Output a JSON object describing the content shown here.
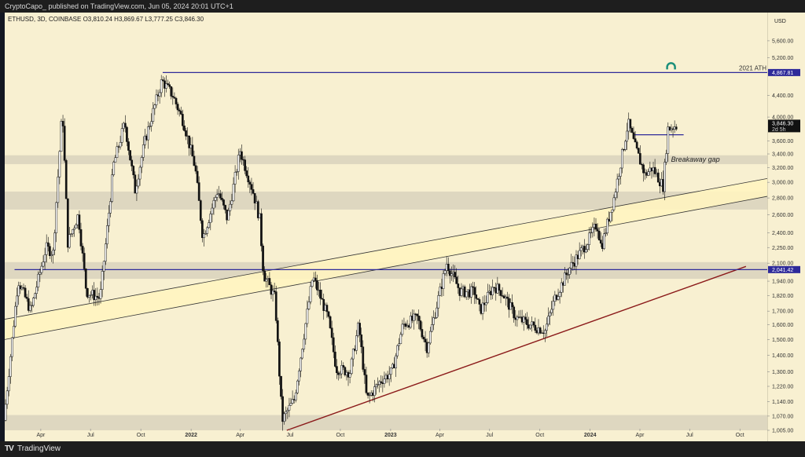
{
  "header": {
    "publish_line": "CryptoCapo_ published on TradingView.com, Jun 05, 2024 20:01 UTC+1"
  },
  "footer": {
    "logo_icon": "tradingview-logo-icon",
    "brand": "TradingView"
  },
  "colors": {
    "background": "#f8f0d1",
    "candle_up": "#ffffff",
    "candle_down": "#111111",
    "zone": "#d9d2bd",
    "channel_fill": "#fff4c0",
    "level_line": "#2e2a9a",
    "support_line": "#8b1a1a"
  },
  "chart_data": {
    "type": "candlestick",
    "symbol_line": "ETHUSD, 3D, COINBASE  O3,810.24  H3,869.67  L3,777.25  C3,846.30",
    "currency": "USD",
    "y_scale": "log",
    "y_range": [
      1005,
      6000
    ],
    "y_ticks": [
      "5,600.00",
      "5,200.00",
      "4,400.00",
      "4,000.00",
      "3,600.00",
      "3,400.00",
      "3,200.00",
      "3,000.00",
      "2,800.00",
      "2,600.00",
      "2,400.00",
      "2,250.00",
      "2,100.00",
      "1,940.00",
      "1,820.00",
      "1,700.00",
      "1,600.00",
      "1,500.00",
      "1,400.00",
      "1,300.00",
      "1,220.00",
      "1,140.00",
      "1,070.00",
      "1,005.00"
    ],
    "x_range": [
      "2021-01-25",
      "2024-11-20"
    ],
    "x_ticks": [
      {
        "label": "Apr",
        "date": "2021-04-01"
      },
      {
        "label": "Jul",
        "date": "2021-07-01"
      },
      {
        "label": "Oct",
        "date": "2021-10-01"
      },
      {
        "label": "2022",
        "date": "2022-01-01"
      },
      {
        "label": "Apr",
        "date": "2022-04-01"
      },
      {
        "label": "Jul",
        "date": "2022-07-01"
      },
      {
        "label": "Oct",
        "date": "2022-10-01"
      },
      {
        "label": "2023",
        "date": "2023-01-01"
      },
      {
        "label": "Apr",
        "date": "2023-04-01"
      },
      {
        "label": "Jul",
        "date": "2023-07-01"
      },
      {
        "label": "Oct",
        "date": "2023-10-01"
      },
      {
        "label": "2024",
        "date": "2024-01-01"
      },
      {
        "label": "Apr",
        "date": "2024-04-01"
      },
      {
        "label": "Jul",
        "date": "2024-07-01"
      },
      {
        "label": "Oct",
        "date": "2024-10-01"
      }
    ],
    "price_path": [
      [
        "2021-01-25",
        1050
      ],
      [
        "2021-02-20",
        1950
      ],
      [
        "2021-03-15",
        1700
      ],
      [
        "2021-04-12",
        2250
      ],
      [
        "2021-04-25",
        2200
      ],
      [
        "2021-05-12",
        4150
      ],
      [
        "2021-05-22",
        2300
      ],
      [
        "2021-06-10",
        2600
      ],
      [
        "2021-06-25",
        1850
      ],
      [
        "2021-07-20",
        1800
      ],
      [
        "2021-08-14",
        3250
      ],
      [
        "2021-09-03",
        3900
      ],
      [
        "2021-09-22",
        2900
      ],
      [
        "2021-10-10",
        3600
      ],
      [
        "2021-11-10",
        4700
      ],
      [
        "2021-11-30",
        4400
      ],
      [
        "2021-12-20",
        3900
      ],
      [
        "2022-01-10",
        3200
      ],
      [
        "2022-01-24",
        2350
      ],
      [
        "2022-02-20",
        2900
      ],
      [
        "2022-03-10",
        2550
      ],
      [
        "2022-04-02",
        3450
      ],
      [
        "2022-04-25",
        2900
      ],
      [
        "2022-05-08",
        2550
      ],
      [
        "2022-05-15",
        2000
      ],
      [
        "2022-06-05",
        1800
      ],
      [
        "2022-06-18",
        1050
      ],
      [
        "2022-07-10",
        1150
      ],
      [
        "2022-08-13",
        1980
      ],
      [
        "2022-09-10",
        1650
      ],
      [
        "2022-09-25",
        1320
      ],
      [
        "2022-10-20",
        1300
      ],
      [
        "2022-11-05",
        1600
      ],
      [
        "2022-11-20",
        1150
      ],
      [
        "2022-12-15",
        1250
      ],
      [
        "2023-01-05",
        1300
      ],
      [
        "2023-01-25",
        1600
      ],
      [
        "2023-02-20",
        1650
      ],
      [
        "2023-03-10",
        1450
      ],
      [
        "2023-04-15",
        2100
      ],
      [
        "2023-05-10",
        1850
      ],
      [
        "2023-06-05",
        1850
      ],
      [
        "2023-06-15",
        1700
      ],
      [
        "2023-07-10",
        1900
      ],
      [
        "2023-07-25",
        1850
      ],
      [
        "2023-08-20",
        1650
      ],
      [
        "2023-09-15",
        1600
      ],
      [
        "2023-10-12",
        1560
      ],
      [
        "2023-10-30",
        1800
      ],
      [
        "2023-11-25",
        2050
      ],
      [
        "2023-12-28",
        2300
      ],
      [
        "2024-01-15",
        2500
      ],
      [
        "2024-01-23",
        2250
      ],
      [
        "2024-02-15",
        2800
      ],
      [
        "2024-03-12",
        3900
      ],
      [
        "2024-03-25",
        3500
      ],
      [
        "2024-04-12",
        3100
      ],
      [
        "2024-04-25",
        3200
      ],
      [
        "2024-05-15",
        2950
      ],
      [
        "2024-05-24",
        3800
      ],
      [
        "2024-06-05",
        3846
      ]
    ],
    "zones": [
      {
        "from": 2660,
        "to": 2880
      },
      {
        "from": 3250,
        "to": 3380
      },
      {
        "from": 1960,
        "to": 2110
      },
      {
        "from": 1005,
        "to": 1075
      }
    ],
    "horizontal_levels": [
      {
        "price": 4867.81,
        "label": "2021 ATH",
        "tag": "4,867.81",
        "from": "2021-11-10",
        "to": "2024-11-20"
      },
      {
        "price": 2041.42,
        "tag": "2,041.42",
        "from": "2021-02-12",
        "to": "2024-11-20"
      },
      {
        "price": 3700,
        "from": "2024-03-20",
        "to": "2024-06-20"
      }
    ],
    "channel": {
      "upper": [
        [
          "2021-01-25",
          1640
        ],
        [
          "2024-11-20",
          3050
        ]
      ],
      "lower": [
        [
          "2021-01-25",
          1500
        ],
        [
          "2024-11-20",
          2820
        ]
      ]
    },
    "support_line": [
      [
        "2022-06-25",
        1005
      ],
      [
        "2024-10-12",
        2070
      ]
    ],
    "annotations": [
      {
        "text": "Breakaway gap",
        "date": "2024-05-28",
        "price": 3285
      }
    ],
    "last_price": {
      "value": "3,846.30",
      "countdown": "2d 5h"
    }
  }
}
